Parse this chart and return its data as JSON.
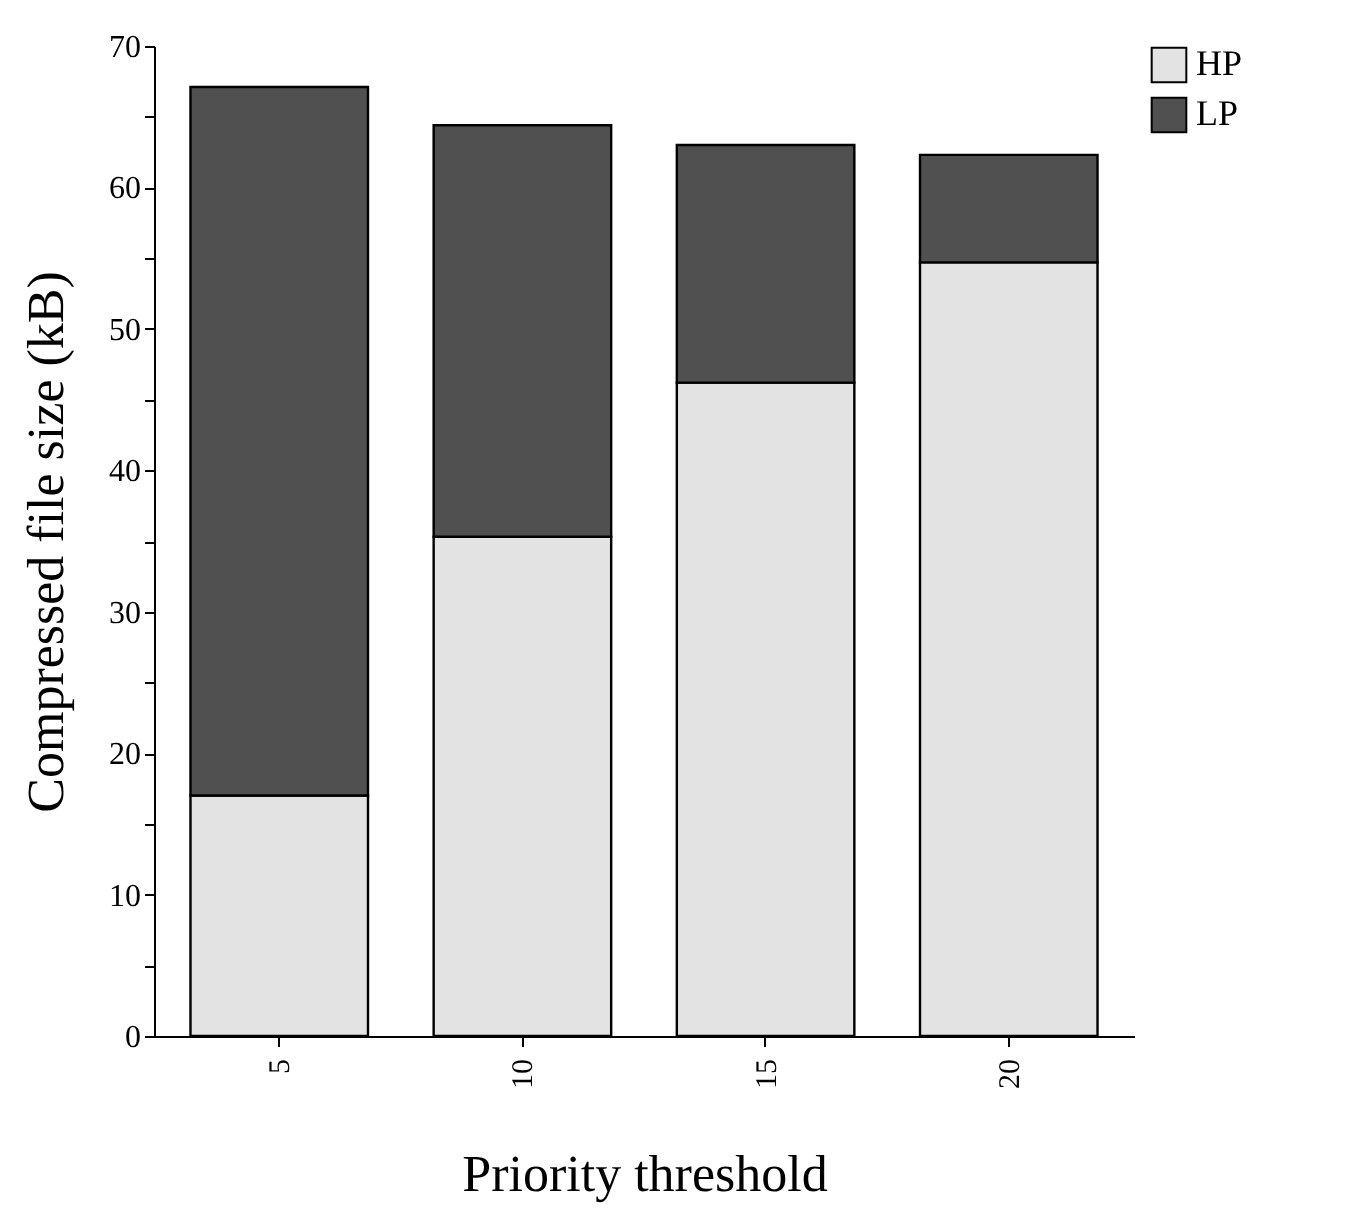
{
  "chart_data": {
    "type": "bar",
    "stacked": true,
    "xlabel": "Priority threshold",
    "ylabel": "Compressed file size (kB)",
    "categories": [
      "5",
      "10",
      "15",
      "20"
    ],
    "series": [
      {
        "name": "HP",
        "color": "#e3e3e3",
        "values": [
          17,
          35.3,
          46.2,
          54.7
        ]
      },
      {
        "name": "LP",
        "color": "#505050",
        "values": [
          50.1,
          29.1,
          16.8,
          7.6
        ]
      }
    ],
    "ylim": [
      0,
      70
    ],
    "yticks": [
      0,
      {
        "value": 5,
        "label": null
      },
      10,
      {
        "value": 15,
        "label": null
      },
      20,
      {
        "value": 25,
        "label": null
      },
      30,
      {
        "value": 35,
        "label": null
      },
      40,
      {
        "value": 45,
        "label": null
      },
      50,
      {
        "value": 55,
        "label": null
      },
      60,
      {
        "value": 65,
        "label": null
      },
      70
    ],
    "grid": false,
    "legend": "top right"
  }
}
